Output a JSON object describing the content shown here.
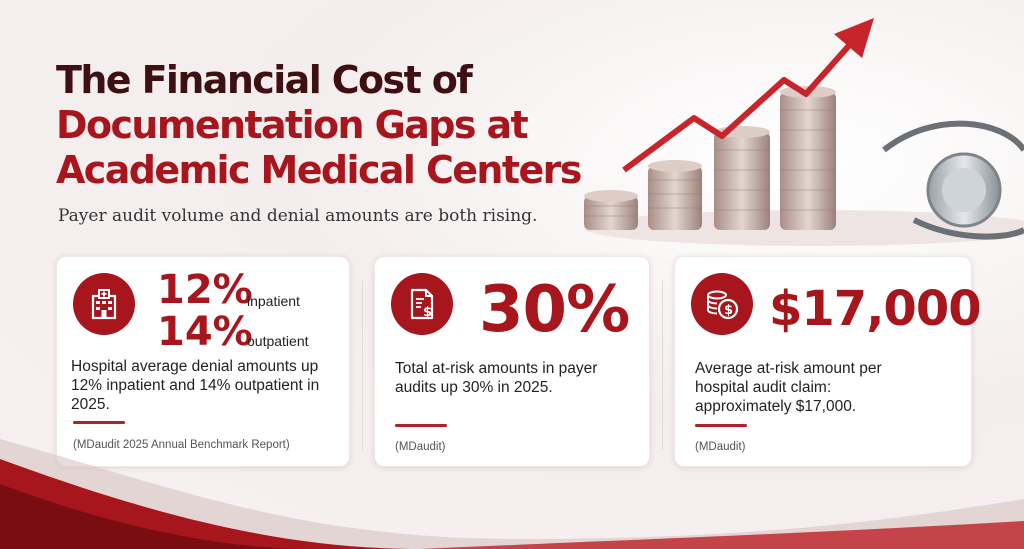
{
  "title": {
    "line1": "The Financial Cost of",
    "line2": "Documentation Gaps at",
    "line3": "Academic Medical Centers"
  },
  "subtitle": "Payer audit volume and denial amounts are both rising.",
  "cards": [
    {
      "icon": "hospital-icon",
      "stat1": "12%",
      "stat1_label": "inpatient",
      "stat2": "14%",
      "stat2_label": "outpatient",
      "description": "Hospital average denial amounts up 12% inpatient and 14% outpatient in 2025.",
      "source": "(MDaudit 2025 Annual Benchmark Report)"
    },
    {
      "icon": "invoice-dollar-icon",
      "stat": "30%",
      "description": "Total at-risk amounts in payer audits up 30% in 2025.",
      "source": "(MDaudit)"
    },
    {
      "icon": "coins-dollar-icon",
      "stat": "$17,000",
      "description": "Average at-risk amount per hospital audit claim: approximately $17,000.",
      "source": "(MDaudit)"
    }
  ],
  "colors": {
    "accent": "#a8161d",
    "dark": "#3e0f13"
  }
}
